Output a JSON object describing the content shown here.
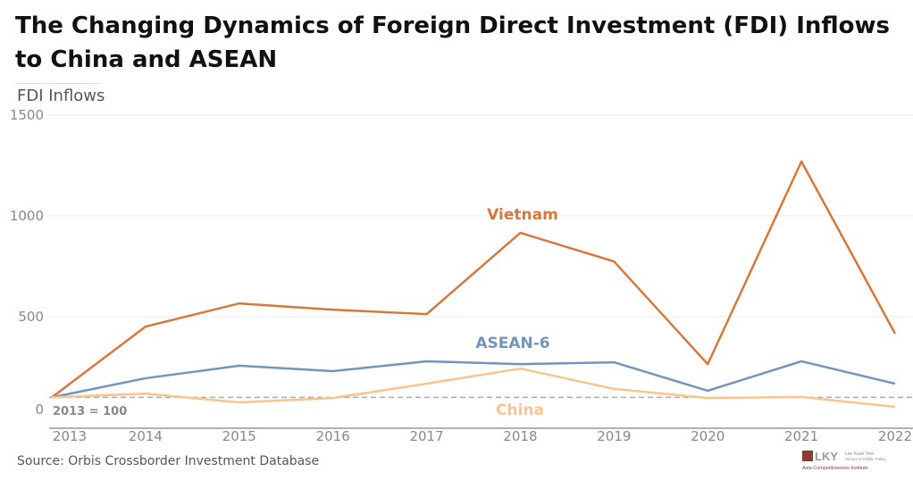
{
  "title": "The Changing Dynamics of Foreign Direct Investment (FDI) Inflows to China and ASEAN",
  "subtitle": "FDI Inflows",
  "source": "Source:  Orbis Crossborder Investment Database",
  "logo": {
    "mark": "LKY",
    "line1": "Lee Kuan Yew",
    "line2": "School of Public Policy",
    "line3": "Asia Competitiveness Institute"
  },
  "chart_data": {
    "type": "line",
    "title": "The Changing Dynamics of Foreign Direct Investment (FDI) Inflows to China and ASEAN",
    "ylabel": "FDI Inflows",
    "xlabel": "",
    "ylim": [
      0,
      1500
    ],
    "yticks": [
      0,
      500,
      1000,
      1500
    ],
    "x": [
      "2013",
      "2014",
      "2015",
      "2016",
      "2017",
      "2018",
      "2019",
      "2020",
      "2021",
      "2022"
    ],
    "reference_line": {
      "value": 100,
      "label": "2013 = 100"
    },
    "grid": true,
    "series": [
      {
        "name": "Vietnam",
        "color": "#D9773A",
        "values": [
          100,
          451,
          566,
          535,
          513,
          916,
          774,
          265,
          1270,
          416
        ]
      },
      {
        "name": "ASEAN-6",
        "color": "#7394BC",
        "values": [
          100,
          195,
          257,
          230,
          279,
          265,
          274,
          133,
          279,
          168
        ]
      },
      {
        "name": "China",
        "color": "#FBC48C",
        "values": [
          100,
          119,
          75,
          97,
          168,
          243,
          142,
          97,
          102,
          53
        ]
      }
    ]
  }
}
